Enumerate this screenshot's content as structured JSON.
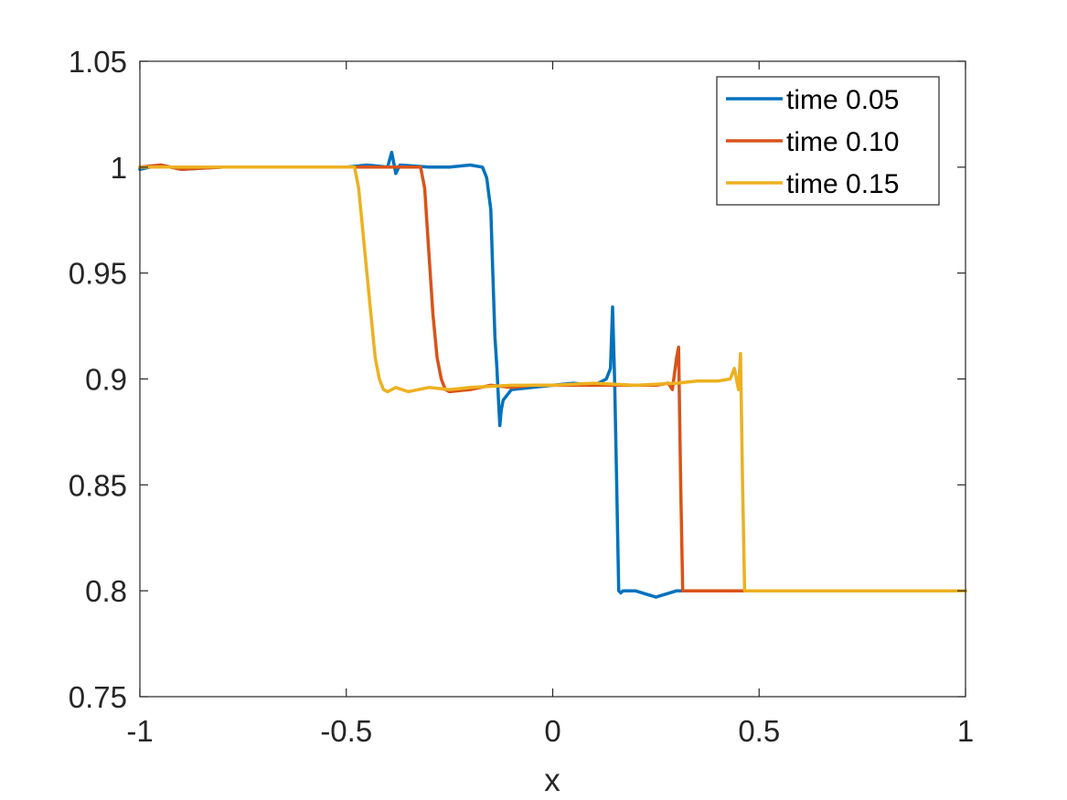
{
  "chart_data": {
    "type": "line",
    "xlabel": "x",
    "ylabel": "",
    "title": "",
    "xlim": [
      -1,
      1
    ],
    "ylim": [
      0.75,
      1.05
    ],
    "xticks": [
      -1,
      -0.5,
      0,
      0.5,
      1
    ],
    "xtick_labels": [
      "-1",
      "-0.5",
      "0",
      "0.5",
      "1"
    ],
    "yticks": [
      0.75,
      0.8,
      0.85,
      0.9,
      0.95,
      1,
      1.05
    ],
    "ytick_labels": [
      "0.75",
      "0.8",
      "0.85",
      "0.9",
      "0.95",
      "1",
      "1.05"
    ],
    "grid": false,
    "legend_position": "top-right",
    "series": [
      {
        "name": "time 0.05",
        "color": "#0072BD",
        "x": [
          -1,
          -0.95,
          -0.9,
          -0.8,
          -0.7,
          -0.6,
          -0.5,
          -0.45,
          -0.4,
          -0.39,
          -0.38,
          -0.37,
          -0.3,
          -0.25,
          -0.2,
          -0.17,
          -0.16,
          -0.15,
          -0.145,
          -0.14,
          -0.135,
          -0.13,
          -0.128,
          -0.125,
          -0.12,
          -0.1,
          -0.05,
          0,
          0.05,
          0.1,
          0.13,
          0.14,
          0.145,
          0.15,
          0.155,
          0.16,
          0.165,
          0.17,
          0.2,
          0.25,
          0.3,
          0.4,
          0.5,
          0.6,
          0.7,
          0.8,
          0.9,
          1
        ],
        "y": [
          0.999,
          1.001,
          0.999,
          1.0,
          1.0,
          1.0,
          1.0,
          1.001,
          1.0,
          1.007,
          0.997,
          1.001,
          1.0,
          1.0,
          1.001,
          1.0,
          0.995,
          0.98,
          0.95,
          0.92,
          0.905,
          0.885,
          0.878,
          0.885,
          0.89,
          0.895,
          0.896,
          0.897,
          0.898,
          0.897,
          0.9,
          0.905,
          0.934,
          0.9,
          0.85,
          0.8,
          0.799,
          0.8,
          0.8,
          0.797,
          0.8,
          0.8,
          0.8,
          0.8,
          0.8,
          0.8,
          0.8,
          0.8
        ]
      },
      {
        "name": "time 0.10",
        "color": "#D95319",
        "x": [
          -1,
          -0.95,
          -0.9,
          -0.8,
          -0.7,
          -0.6,
          -0.5,
          -0.4,
          -0.35,
          -0.32,
          -0.31,
          -0.3,
          -0.29,
          -0.28,
          -0.27,
          -0.26,
          -0.25,
          -0.2,
          -0.15,
          -0.1,
          -0.05,
          0,
          0.05,
          0.1,
          0.15,
          0.2,
          0.25,
          0.28,
          0.29,
          0.3,
          0.305,
          0.31,
          0.315,
          0.32,
          0.33,
          0.35,
          0.4,
          0.5,
          0.6,
          0.7,
          0.8,
          0.9,
          1
        ],
        "y": [
          1.0,
          1.001,
          0.999,
          1.0,
          1.0,
          1.0,
          1.0,
          1.0,
          1.0,
          1.0,
          0.99,
          0.96,
          0.93,
          0.91,
          0.9,
          0.895,
          0.894,
          0.895,
          0.897,
          0.896,
          0.897,
          0.897,
          0.897,
          0.897,
          0.897,
          0.897,
          0.897,
          0.898,
          0.895,
          0.91,
          0.915,
          0.85,
          0.8,
          0.8,
          0.8,
          0.8,
          0.8,
          0.8,
          0.8,
          0.8,
          0.8,
          0.8,
          0.8
        ]
      },
      {
        "name": "time 0.15",
        "color": "#EDB120",
        "x": [
          -1,
          -0.95,
          -0.9,
          -0.8,
          -0.7,
          -0.6,
          -0.5,
          -0.48,
          -0.47,
          -0.46,
          -0.45,
          -0.44,
          -0.43,
          -0.42,
          -0.41,
          -0.4,
          -0.38,
          -0.35,
          -0.3,
          -0.25,
          -0.2,
          -0.1,
          0,
          0.1,
          0.2,
          0.3,
          0.35,
          0.4,
          0.43,
          0.44,
          0.45,
          0.455,
          0.46,
          0.465,
          0.47,
          0.5,
          0.6,
          0.7,
          0.8,
          0.9,
          1
        ],
        "y": [
          1.0,
          1.0,
          1.0,
          1.0,
          1.0,
          1.0,
          1.0,
          1.0,
          0.99,
          0.97,
          0.95,
          0.93,
          0.91,
          0.9,
          0.895,
          0.894,
          0.896,
          0.894,
          0.896,
          0.895,
          0.896,
          0.897,
          0.897,
          0.898,
          0.897,
          0.898,
          0.899,
          0.899,
          0.9,
          0.905,
          0.895,
          0.912,
          0.85,
          0.8,
          0.8,
          0.8,
          0.8,
          0.8,
          0.8,
          0.8,
          0.8
        ]
      }
    ]
  }
}
